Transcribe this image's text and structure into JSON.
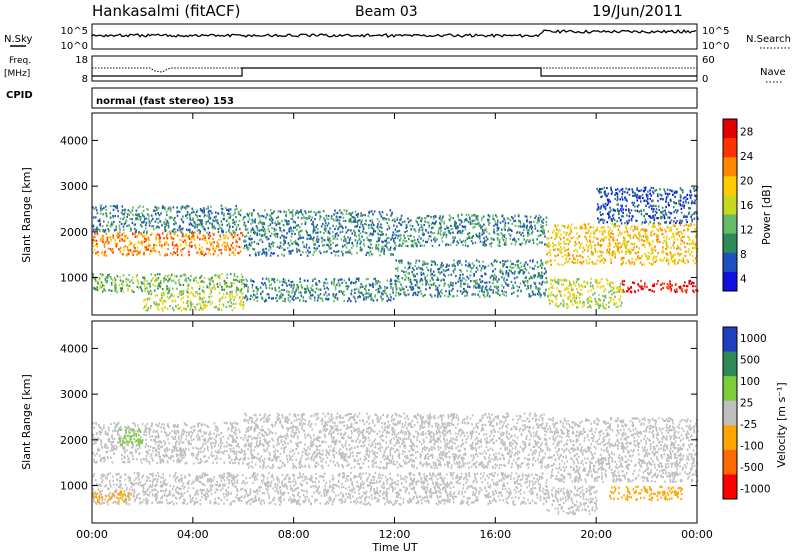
{
  "header": {
    "station": "Hankasalmi (fitACF)",
    "beam": "Beam 03",
    "date": "19/Jun/2011"
  },
  "status_panel": {
    "nsky_label": "N.Sky",
    "nsky_ticks": [
      "10^5",
      "10^0"
    ],
    "nsearch_label": "N.Search",
    "nsearch_ticks": [
      "10^5",
      "10^0"
    ],
    "freq_label_1": "Freq.",
    "freq_label_2": "[MHz]",
    "freq_ticks": [
      "18",
      "8"
    ],
    "nave_label": "Nave",
    "nave_ticks": [
      "60",
      "0"
    ],
    "cpid_label": "CPID",
    "cpid_text": "normal (fast stereo) 153"
  },
  "chart_data": [
    {
      "type": "heatmap",
      "panel": "power",
      "xlabel": "",
      "ylabel": "Slant Range [km]",
      "ylim": [
        180,
        4600
      ],
      "y_ticks": [
        "1000",
        "2000",
        "3000",
        "4000"
      ],
      "colorbar_label": "Power [dB]",
      "colorbar_ticks": [
        "4",
        "8",
        "12",
        "16",
        "20",
        "24",
        "28"
      ],
      "colorbar_range": [
        0,
        30
      ],
      "colormap": [
        "#1010e0",
        "#2050c0",
        "#2e8b57",
        "#66bb6a",
        "#c8d820",
        "#ffcc00",
        "#ff8800",
        "#ff3300",
        "#e00000"
      ],
      "echo_regions": [
        {
          "t0": 0.0,
          "t1": 6.0,
          "r0": 1500,
          "r1": 2000,
          "level": 22
        },
        {
          "t0": 0.0,
          "t1": 6.0,
          "r0": 700,
          "r1": 1100,
          "level": 12
        },
        {
          "t0": 0.0,
          "t1": 6.0,
          "r0": 2000,
          "r1": 2600,
          "level": 8
        },
        {
          "t0": 2.0,
          "t1": 6.0,
          "r0": 300,
          "r1": 700,
          "level": 14
        },
        {
          "t0": 6.0,
          "t1": 12.0,
          "r0": 1500,
          "r1": 2500,
          "level": 9
        },
        {
          "t0": 6.0,
          "t1": 12.0,
          "r0": 500,
          "r1": 1000,
          "level": 8
        },
        {
          "t0": 12.0,
          "t1": 18.0,
          "r0": 1700,
          "r1": 2400,
          "level": 8
        },
        {
          "t0": 12.0,
          "t1": 18.0,
          "r0": 600,
          "r1": 1400,
          "level": 7
        },
        {
          "t0": 18.0,
          "t1": 24.0,
          "r0": 1300,
          "r1": 2200,
          "level": 17
        },
        {
          "t0": 18.0,
          "t1": 21.0,
          "r0": 350,
          "r1": 1000,
          "level": 15
        },
        {
          "t0": 21.0,
          "t1": 24.0,
          "r0": 700,
          "r1": 950,
          "level": 27
        },
        {
          "t0": 20.0,
          "t1": 24.0,
          "r0": 2200,
          "r1": 3000,
          "level": 6
        }
      ]
    },
    {
      "type": "heatmap",
      "panel": "velocity",
      "xlabel": "Time UT",
      "ylabel": "Slant Range [km]",
      "ylim": [
        180,
        4600
      ],
      "xlim": [
        0,
        24
      ],
      "x_ticks": [
        "00:00",
        "04:00",
        "08:00",
        "12:00",
        "16:00",
        "20:00",
        "00:00"
      ],
      "y_ticks": [
        "1000",
        "2000",
        "3000",
        "4000"
      ],
      "colorbar_label": "Velocity [m s⁻¹]",
      "colorbar_ticks": [
        "1000",
        "500",
        "100",
        "25",
        "-25",
        "-100",
        "-500",
        "-1000"
      ],
      "colormap": [
        "#1f3fbf",
        "#2e8b57",
        "#7ccd3c",
        "#bfbfbf",
        "#ffa500",
        "#ff6a00",
        "#ff0000"
      ],
      "echo_regions": [
        {
          "t0": 0.0,
          "t1": 6.0,
          "r0": 1500,
          "r1": 2400,
          "level": "#bfbfbf"
        },
        {
          "t0": 1.0,
          "t1": 2.0,
          "r0": 1900,
          "r1": 2300,
          "level": "#7ccd3c"
        },
        {
          "t0": 6.0,
          "t1": 18.0,
          "r0": 1400,
          "r1": 2600,
          "level": "#bfbfbf"
        },
        {
          "t0": 0.0,
          "t1": 18.0,
          "r0": 600,
          "r1": 1300,
          "level": "#bfbfbf"
        },
        {
          "t0": 18.0,
          "t1": 24.0,
          "r0": 1100,
          "r1": 2500,
          "level": "#bfbfbf"
        },
        {
          "t0": 18.0,
          "t1": 20.0,
          "r0": 400,
          "r1": 1000,
          "level": "#bfbfbf"
        },
        {
          "t0": 20.5,
          "t1": 23.5,
          "r0": 700,
          "r1": 1000,
          "level": "#ffa500"
        },
        {
          "t0": 0.0,
          "t1": 1.5,
          "r0": 650,
          "r1": 900,
          "level": "#ffa500"
        }
      ]
    }
  ]
}
